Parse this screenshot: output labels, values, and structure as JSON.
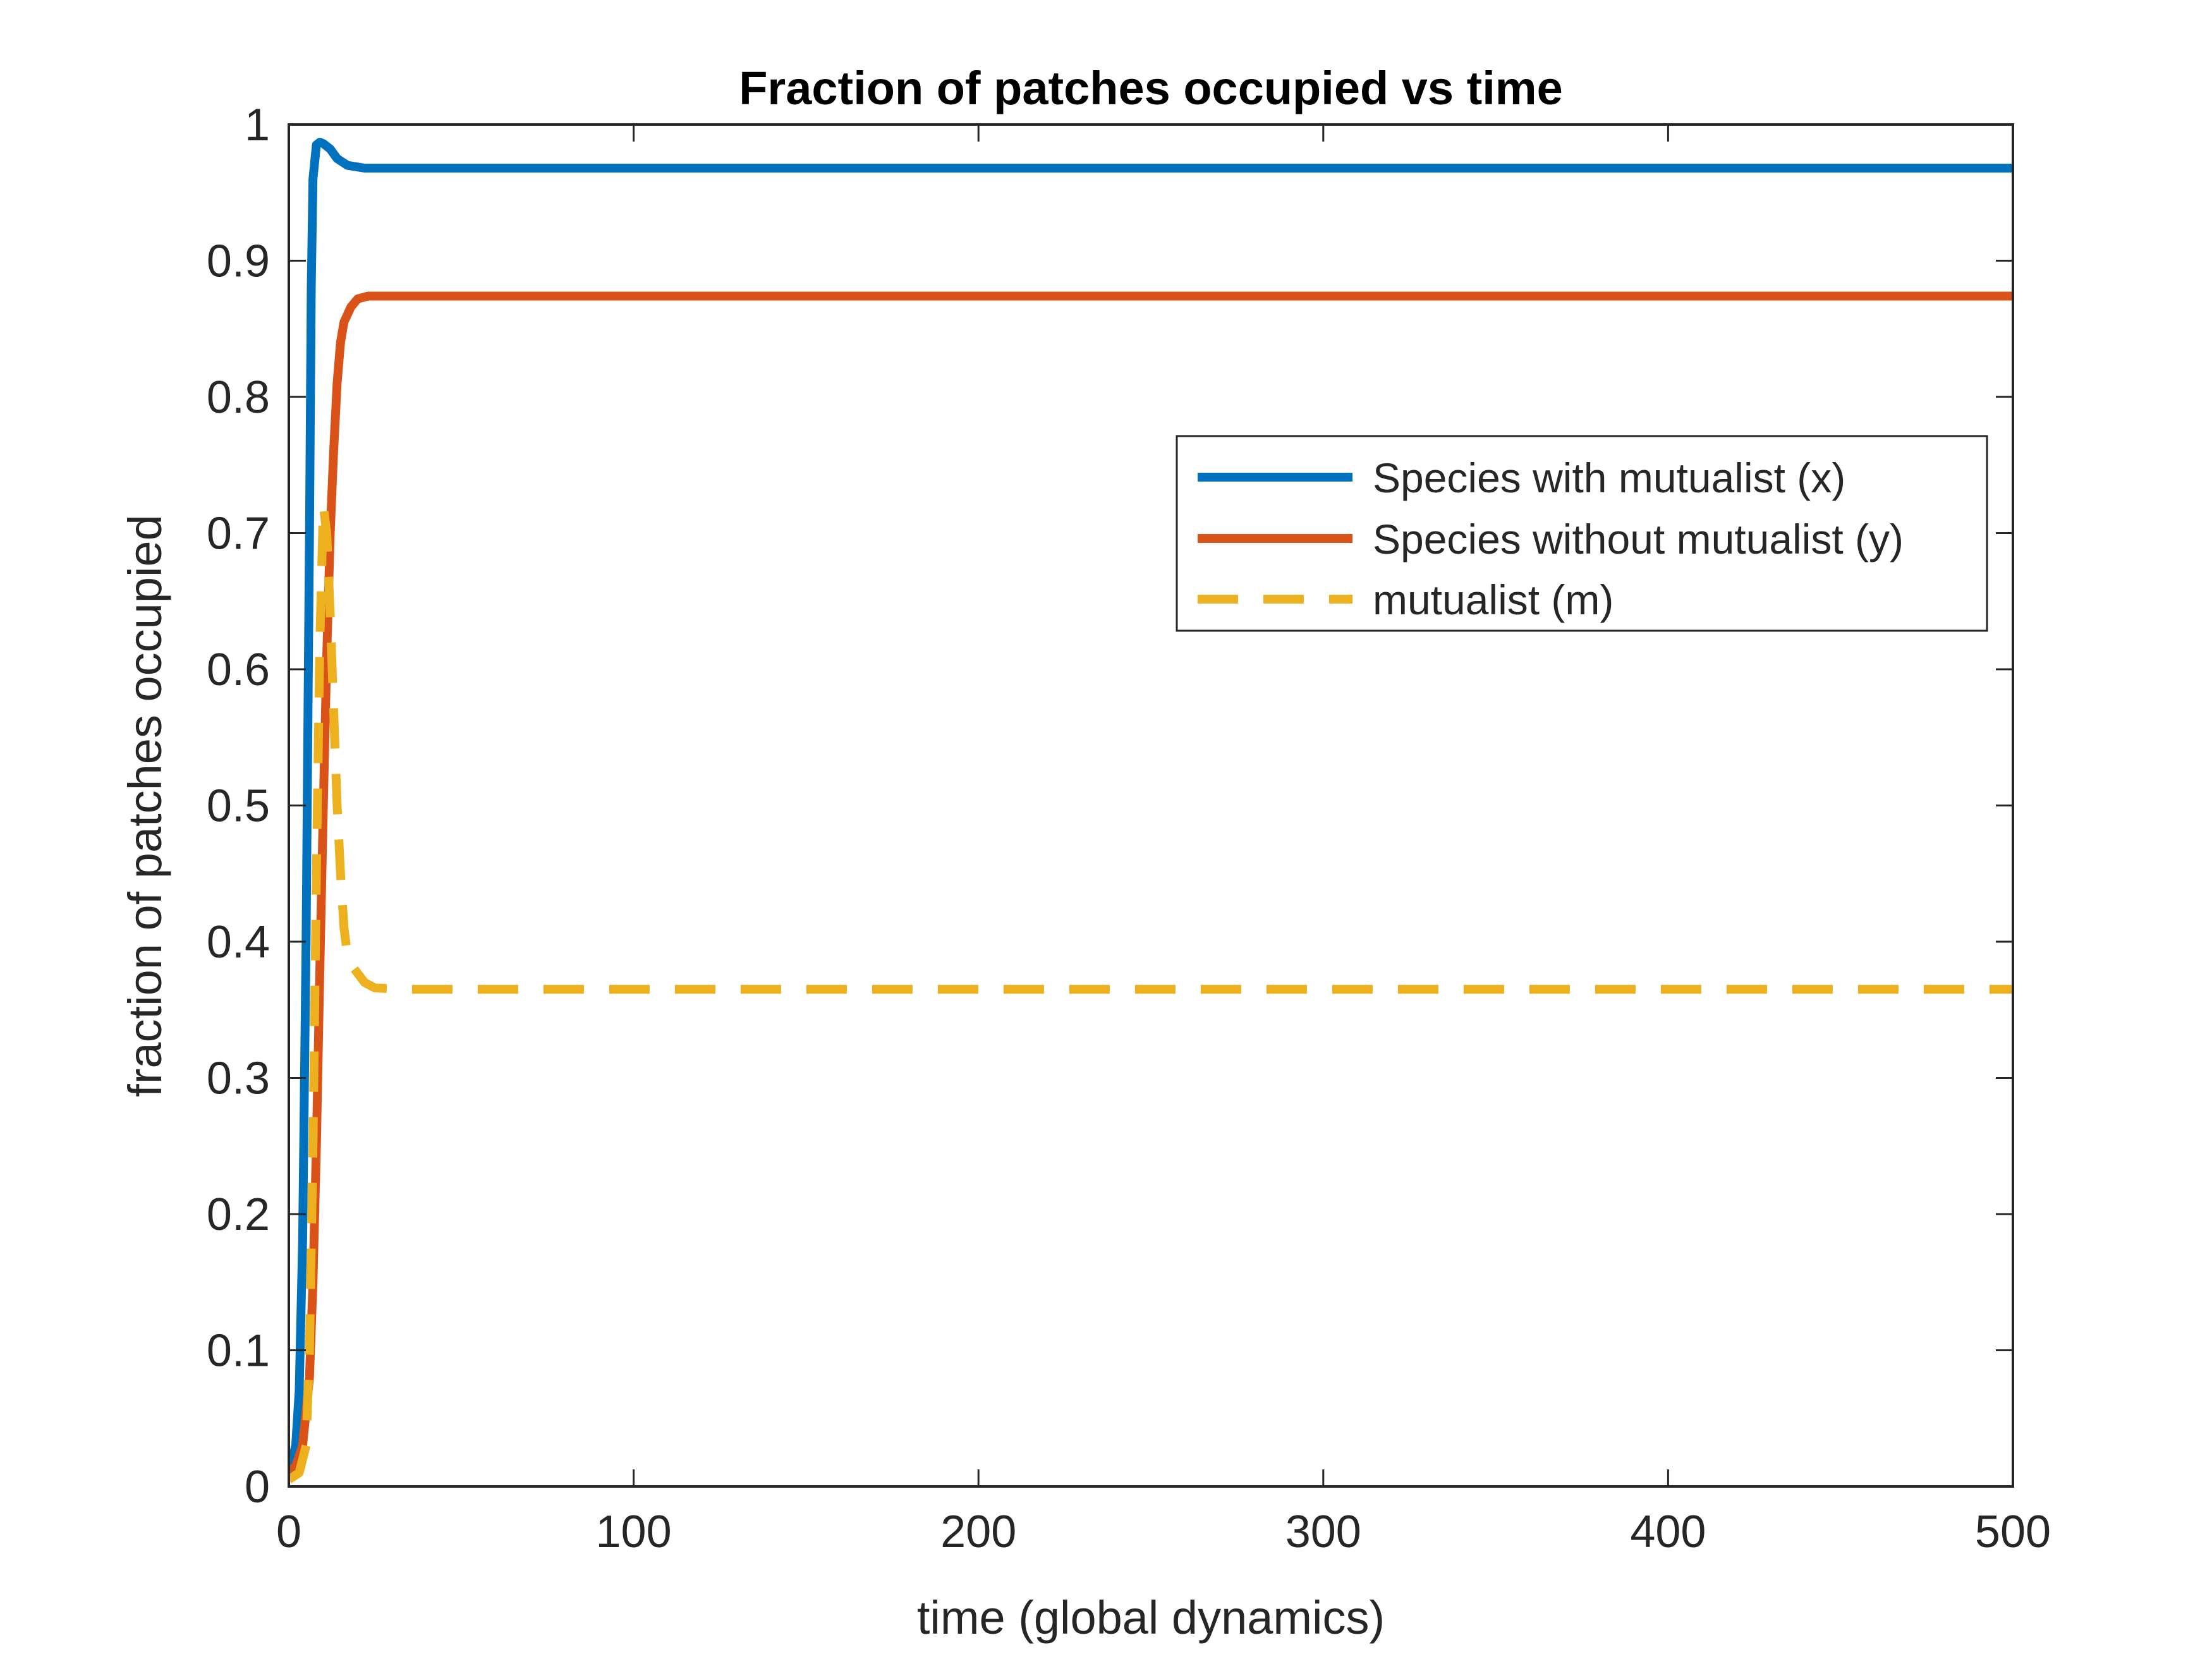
{
  "chart_data": {
    "type": "line",
    "title": "Fraction of patches occupied vs time",
    "xlabel": "time (global dynamics)",
    "ylabel": "fraction of patches occupied",
    "xlim": [
      0,
      500
    ],
    "ylim": [
      0,
      1
    ],
    "xticks": [
      0,
      100,
      200,
      300,
      400,
      500
    ],
    "xtick_labels": [
      "0",
      "100",
      "200",
      "300",
      "400",
      "500"
    ],
    "yticks": [
      0,
      0.1,
      0.2,
      0.3,
      0.4,
      0.5,
      0.6,
      0.7,
      0.8,
      0.9,
      1
    ],
    "ytick_labels": [
      "0",
      "0.1",
      "0.2",
      "0.3",
      "0.4",
      "0.5",
      "0.6",
      "0.7",
      "0.8",
      "0.9",
      "1"
    ],
    "grid": false,
    "legend_position": "upper-right",
    "series": [
      {
        "name": "Species with mutualist (x)",
        "color": "#0072BD",
        "dash": "solid",
        "points": [
          [
            0,
            0.01
          ],
          [
            2,
            0.03
          ],
          [
            3,
            0.07
          ],
          [
            4,
            0.18
          ],
          [
            5,
            0.4
          ],
          [
            6,
            0.7
          ],
          [
            6.5,
            0.88
          ],
          [
            7,
            0.96
          ],
          [
            8,
            0.985
          ],
          [
            9,
            0.987
          ],
          [
            10,
            0.986
          ],
          [
            12,
            0.982
          ],
          [
            14,
            0.975
          ],
          [
            17,
            0.97
          ],
          [
            22,
            0.968
          ],
          [
            30,
            0.968
          ],
          [
            100,
            0.968
          ],
          [
            200,
            0.968
          ],
          [
            300,
            0.968
          ],
          [
            400,
            0.968
          ],
          [
            500,
            0.968
          ]
        ]
      },
      {
        "name": "Species without mutualist (y)",
        "color": "#D95319",
        "dash": "solid",
        "points": [
          [
            0,
            0.01
          ],
          [
            2,
            0.015
          ],
          [
            4,
            0.03
          ],
          [
            6,
            0.08
          ],
          [
            7,
            0.15
          ],
          [
            8,
            0.25
          ],
          [
            9,
            0.38
          ],
          [
            10,
            0.5
          ],
          [
            11,
            0.61
          ],
          [
            12,
            0.7
          ],
          [
            13,
            0.76
          ],
          [
            14,
            0.81
          ],
          [
            15,
            0.84
          ],
          [
            16,
            0.855
          ],
          [
            18,
            0.866
          ],
          [
            20,
            0.872
          ],
          [
            23,
            0.874
          ],
          [
            30,
            0.874
          ],
          [
            100,
            0.874
          ],
          [
            200,
            0.874
          ],
          [
            300,
            0.874
          ],
          [
            400,
            0.874
          ],
          [
            500,
            0.874
          ]
        ]
      },
      {
        "name": "mutualist (m)",
        "color": "#EDB120",
        "dash": "dashed",
        "points": [
          [
            0,
            0.005
          ],
          [
            3,
            0.01
          ],
          [
            5,
            0.03
          ],
          [
            6,
            0.1
          ],
          [
            7,
            0.25
          ],
          [
            8,
            0.45
          ],
          [
            9,
            0.62
          ],
          [
            10,
            0.72
          ],
          [
            11,
            0.7
          ],
          [
            12,
            0.64
          ],
          [
            13,
            0.57
          ],
          [
            14,
            0.5
          ],
          [
            15,
            0.45
          ],
          [
            16,
            0.41
          ],
          [
            17,
            0.39
          ],
          [
            19,
            0.38
          ],
          [
            22,
            0.37
          ],
          [
            25,
            0.366
          ],
          [
            35,
            0.365
          ],
          [
            100,
            0.365
          ],
          [
            200,
            0.365
          ],
          [
            300,
            0.365
          ],
          [
            400,
            0.365
          ],
          [
            500,
            0.365
          ]
        ]
      }
    ]
  }
}
